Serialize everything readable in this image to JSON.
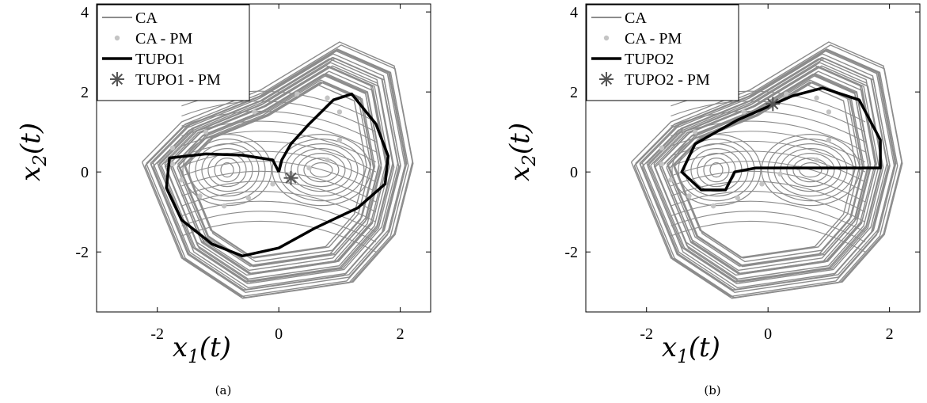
{
  "chart_data": [
    {
      "type": "line",
      "caption": "(a)",
      "xlabel": "x_1(t)",
      "ylabel": "x_2(t)",
      "xlim": [
        -3,
        2.5
      ],
      "ylim": [
        -3.5,
        4.2
      ],
      "x_ticks": [
        -2,
        0,
        2
      ],
      "y_ticks": [
        -2,
        0,
        2,
        4
      ],
      "x_tick_labels": [
        "-2",
        "0",
        "2"
      ],
      "y_tick_labels": [
        "-2",
        "0",
        "2",
        "4"
      ],
      "legend_position": "top-left",
      "legend": [
        "CA",
        "CA - PM",
        "TUPO1",
        "TUPO1 - PM"
      ],
      "series": [
        {
          "name": "CA",
          "style": "thin-line",
          "color": "#8c8c8c",
          "description_points": [
            [
              -2.25,
              0.2
            ],
            [
              -1.6,
              1.2
            ],
            [
              -0.3,
              2.0
            ],
            [
              1.0,
              3.2
            ],
            [
              1.9,
              2.6
            ],
            [
              2.2,
              0.2
            ],
            [
              1.9,
              -1.6
            ],
            [
              1.2,
              -2.8
            ],
            [
              -0.6,
              -3.2
            ],
            [
              -1.6,
              -2.2
            ],
            [
              -2.25,
              0.2
            ]
          ]
        },
        {
          "name": "CA - PM",
          "style": "dots",
          "color": "#c4c4c4",
          "points": [
            [
              -1.75,
              0.6
            ],
            [
              -1.2,
              1.0
            ],
            [
              -0.4,
              1.5
            ],
            [
              0.3,
              1.95
            ],
            [
              0.8,
              1.85
            ],
            [
              1.0,
              1.5
            ],
            [
              1.0,
              0.8
            ],
            [
              0.8,
              0.3
            ],
            [
              0.5,
              0.1
            ],
            [
              0.2,
              -0.05
            ],
            [
              -0.1,
              -0.3
            ],
            [
              -0.5,
              -0.65
            ],
            [
              -0.9,
              -0.85
            ],
            [
              -1.3,
              -0.6
            ],
            [
              -1.6,
              -0.2
            ],
            [
              -1.75,
              0.2
            ]
          ]
        },
        {
          "name": "TUPO1",
          "style": "thick-line",
          "color": "#000000",
          "points": [
            [
              0.0,
              0.0
            ],
            [
              -0.1,
              0.3
            ],
            [
              -0.6,
              0.42
            ],
            [
              -1.2,
              0.45
            ],
            [
              -1.8,
              0.35
            ],
            [
              -1.85,
              -0.4
            ],
            [
              -1.6,
              -1.2
            ],
            [
              -1.1,
              -1.8
            ],
            [
              -0.6,
              -2.1
            ],
            [
              0.0,
              -1.9
            ],
            [
              0.6,
              -1.4
            ],
            [
              1.3,
              -0.9
            ],
            [
              1.75,
              -0.3
            ],
            [
              1.8,
              0.4
            ],
            [
              1.6,
              1.2
            ],
            [
              1.2,
              1.95
            ],
            [
              0.9,
              1.8
            ],
            [
              0.5,
              1.2
            ],
            [
              0.2,
              0.7
            ],
            [
              0.05,
              0.3
            ],
            [
              0.0,
              0.0
            ]
          ]
        },
        {
          "name": "TUPO1 - PM",
          "style": "asterisk",
          "color": "#555555",
          "points": [
            [
              0.2,
              -0.15
            ]
          ]
        }
      ]
    },
    {
      "type": "line",
      "caption": "(b)",
      "xlabel": "x_1(t)",
      "ylabel": "x_2(t)",
      "xlim": [
        -3,
        2.5
      ],
      "ylim": [
        -3.5,
        4.2
      ],
      "x_ticks": [
        -2,
        0,
        2
      ],
      "y_ticks": [
        -2,
        0,
        2,
        4
      ],
      "x_tick_labels": [
        "-2",
        "0",
        "2"
      ],
      "y_tick_labels": [
        "-2",
        "0",
        "2",
        "4"
      ],
      "legend_position": "top-left",
      "legend": [
        "CA",
        "CA - PM",
        "TUPO2",
        "TUPO2 - PM"
      ],
      "series": [
        {
          "name": "CA",
          "style": "thin-line",
          "color": "#8c8c8c",
          "description_points": [
            [
              -2.25,
              0.2
            ],
            [
              -1.6,
              1.2
            ],
            [
              -0.3,
              2.0
            ],
            [
              1.0,
              3.2
            ],
            [
              1.9,
              2.6
            ],
            [
              2.2,
              0.2
            ],
            [
              1.9,
              -1.6
            ],
            [
              1.2,
              -2.8
            ],
            [
              -0.6,
              -3.2
            ],
            [
              -1.6,
              -2.2
            ],
            [
              -2.25,
              0.2
            ]
          ]
        },
        {
          "name": "CA - PM",
          "style": "dots",
          "color": "#c4c4c4",
          "points": [
            [
              -1.75,
              0.6
            ],
            [
              -1.2,
              1.0
            ],
            [
              -0.4,
              1.5
            ],
            [
              0.3,
              1.95
            ],
            [
              0.8,
              1.85
            ],
            [
              1.0,
              1.5
            ],
            [
              1.0,
              0.8
            ],
            [
              0.8,
              0.3
            ],
            [
              0.5,
              0.1
            ],
            [
              0.2,
              -0.05
            ],
            [
              -0.1,
              -0.3
            ],
            [
              -0.5,
              -0.65
            ],
            [
              -0.9,
              -0.85
            ],
            [
              -1.3,
              -0.6
            ],
            [
              -1.6,
              -0.2
            ],
            [
              -1.75,
              0.2
            ]
          ]
        },
        {
          "name": "TUPO2",
          "style": "thick-line",
          "color": "#000000",
          "points": [
            [
              0.1,
              1.7
            ],
            [
              -0.5,
              1.3
            ],
            [
              -1.2,
              0.7
            ],
            [
              -1.42,
              0.0
            ],
            [
              -1.1,
              -0.45
            ],
            [
              -0.7,
              -0.45
            ],
            [
              -0.55,
              0.0
            ],
            [
              -0.2,
              0.1
            ],
            [
              0.6,
              0.1
            ],
            [
              1.3,
              0.1
            ],
            [
              1.85,
              0.1
            ],
            [
              1.85,
              0.8
            ],
            [
              1.5,
              1.8
            ],
            [
              0.9,
              2.1
            ],
            [
              0.4,
              1.9
            ],
            [
              0.1,
              1.7
            ]
          ]
        },
        {
          "name": "TUPO2 - PM",
          "style": "asterisk",
          "color": "#555555",
          "points": [
            [
              0.08,
              1.7
            ]
          ]
        }
      ]
    }
  ]
}
